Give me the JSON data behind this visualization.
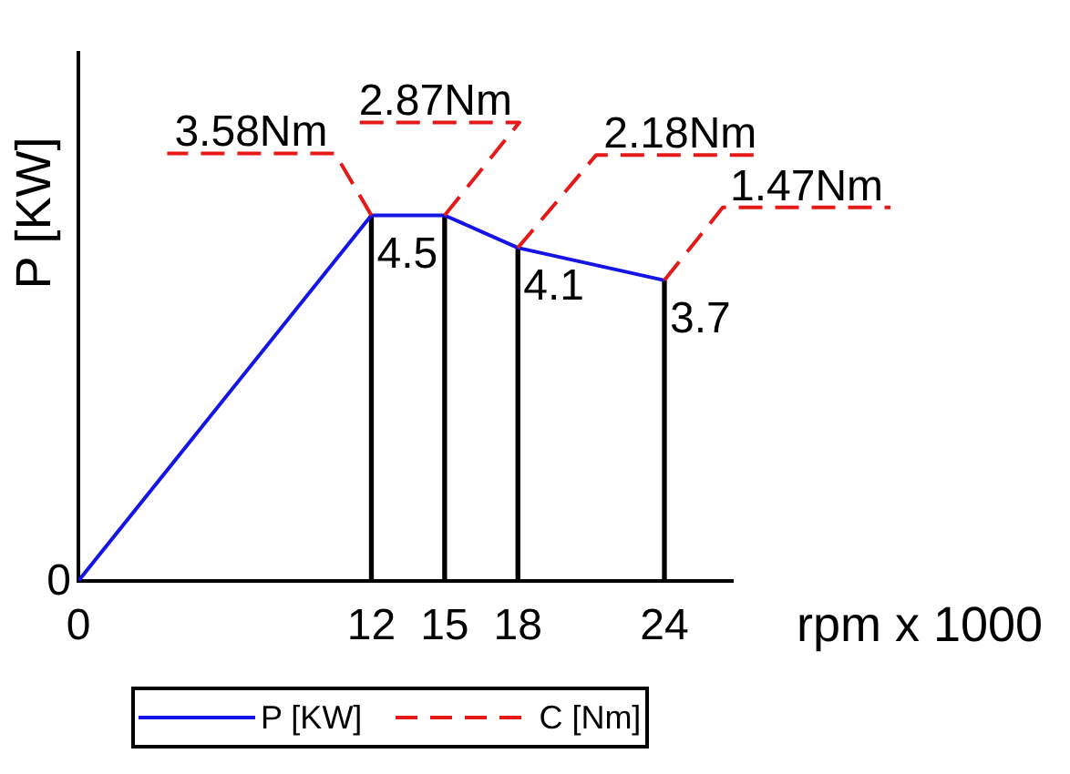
{
  "chart_data": {
    "type": "bar",
    "xlabel": "rpm x 1000",
    "ylabel": "P [KW]",
    "x": [
      12,
      15,
      18,
      24
    ],
    "xlim": [
      0,
      26.8
    ],
    "xticks": [
      0,
      12,
      15,
      18,
      24
    ],
    "ylim": [
      0,
      6.5
    ],
    "series": [
      {
        "name": "P [KW]",
        "type": "line",
        "color": "#1414e6",
        "x": [
          0,
          12,
          15,
          18,
          24
        ],
        "values": [
          0,
          4.5,
          4.5,
          4.1,
          3.7
        ],
        "value_labels": [
          null,
          "4.5",
          null,
          "4.1",
          "3.7"
        ]
      },
      {
        "color": "#000000",
        "values": [
          4.5,
          4.5,
          4.1,
          3.7
        ]
      },
      {
        "name": "C [Nm]",
        "type": "line",
        "color": "#e61919",
        "line_style": "dashed",
        "values": [
          null,
          null,
          null,
          null
        ]
      }
    ],
    "annotations": [
      {
        "text": "3.58Nm",
        "x": 12,
        "y": 4.5
      },
      {
        "text": "2.87Nm",
        "x": 15,
        "y": 4.5
      },
      {
        "text": "2.18Nm",
        "x": 18,
        "y": 4.1
      },
      {
        "text": "1.47Nm",
        "x": 24,
        "y": 3.7
      },
      {
        "text": "0",
        "x": 0,
        "y": 0
      }
    ],
    "legend": "bottom",
    "marker": "none"
  }
}
